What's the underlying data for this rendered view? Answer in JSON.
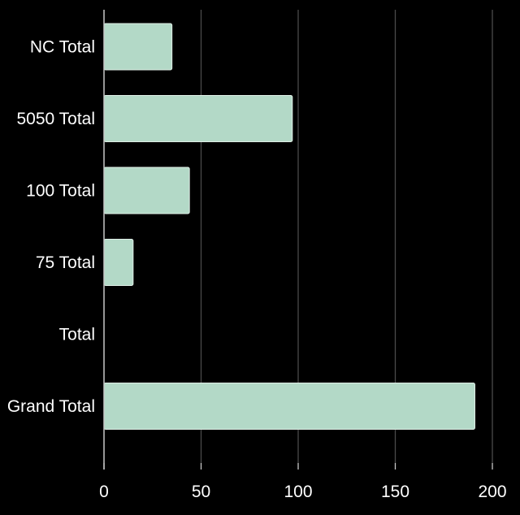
{
  "chart_data": {
    "type": "bar",
    "orientation": "horizontal",
    "categories": [
      "NC Total",
      "5050 Total",
      "100 Total",
      "75 Total",
      "Total",
      "Grand Total"
    ],
    "values": [
      35,
      97,
      44,
      15,
      0,
      191
    ],
    "xlim": [
      0,
      200
    ],
    "x_ticks": [
      "0",
      "50",
      "100",
      "150",
      "200"
    ],
    "title": "",
    "xlabel": "",
    "ylabel": "",
    "grid": "vertical",
    "legend": "none"
  },
  "colors": {
    "background": "#000000",
    "bar": "#b3d9c7",
    "bar_edge": "#dfeee6",
    "gridline": "#4a4a4a",
    "axis": "#c8c8c8",
    "text": "#ffffff"
  }
}
